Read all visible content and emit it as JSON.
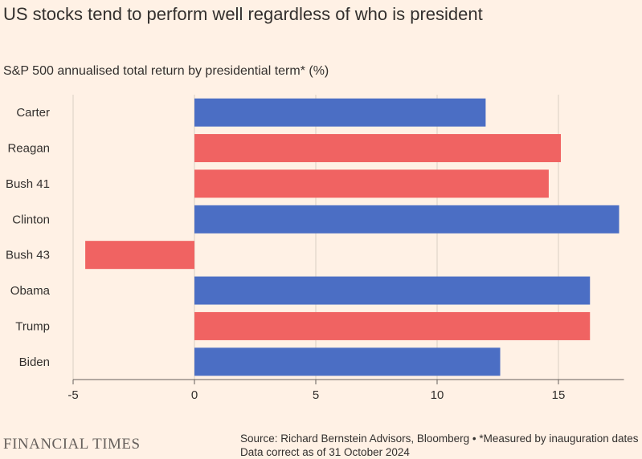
{
  "title": "US stocks tend to perform well regardless of who is president",
  "chart_data": {
    "type": "bar",
    "orientation": "horizontal",
    "title": "US stocks tend to perform well regardless of who is president",
    "subtitle": "S&P 500 annualised total return by presidential term* (%)",
    "categories": [
      "Carter",
      "Reagan",
      "Bush 41",
      "Clinton",
      "Bush 43",
      "Obama",
      "Trump",
      "Biden"
    ],
    "values": [
      12.0,
      15.1,
      14.6,
      17.5,
      -4.5,
      16.3,
      16.3,
      12.6
    ],
    "bar_colors": [
      "#4b6ec4",
      "#f06362",
      "#f06362",
      "#4b6ec4",
      "#f06362",
      "#4b6ec4",
      "#f06362",
      "#4b6ec4"
    ],
    "xlim": [
      -5,
      17.7
    ],
    "xticks": [
      -5,
      0,
      5,
      10,
      15
    ],
    "xtick_labels": [
      "-5",
      "0",
      "5",
      "10",
      "15"
    ],
    "xlabel": "",
    "ylabel": "",
    "grid": true
  },
  "footer": {
    "brand": "FINANCIAL TIMES",
    "source_line1": "Source: Richard Bernstein Advisors, Bloomberg • *Measured by inauguration dates",
    "source_line2": "Data correct as of 31 October 2024"
  },
  "colors": {
    "background": "#fff1e5",
    "democrat": "#4b6ec4",
    "republican": "#f06362",
    "grid": "#d9cec4",
    "axis": "#66605c"
  }
}
